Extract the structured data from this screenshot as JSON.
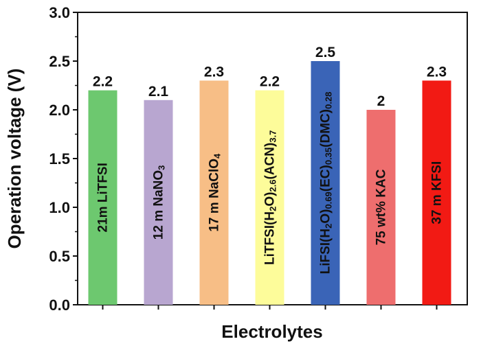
{
  "chart_data": {
    "type": "bar",
    "xlabel": "Electrolytes",
    "ylabel": "Operation voltage (V)",
    "ylim": [
      0,
      3.0
    ],
    "y_ticks": [
      "0.0",
      "0.5",
      "1.0",
      "1.5",
      "2.0",
      "2.5",
      "3.0"
    ],
    "y_tick_values": [
      0,
      0.5,
      1.0,
      1.5,
      2.0,
      2.5,
      3.0
    ],
    "grid": false,
    "legend": "none",
    "bars": [
      {
        "label": [
          {
            "t": "21m LiTFSI"
          }
        ],
        "value": 2.2,
        "value_label": "2.2",
        "color": "#6dc86f"
      },
      {
        "label": [
          {
            "t": "12 m NaNO"
          },
          {
            "t": "3",
            "sub": true
          }
        ],
        "value": 2.1,
        "value_label": "2.1",
        "color": "#b8a6d0"
      },
      {
        "label": [
          {
            "t": "17 m NaClO"
          },
          {
            "t": "4",
            "sub": true
          }
        ],
        "value": 2.3,
        "value_label": "2.3",
        "color": "#f7be86"
      },
      {
        "label": [
          {
            "t": "LiTFSI(H"
          },
          {
            "t": "2",
            "sub": true
          },
          {
            "t": "O)"
          },
          {
            "t": "2.6",
            "sub": true
          },
          {
            "t": "(ACN)"
          },
          {
            "t": "3.7",
            "sub": true
          }
        ],
        "value": 2.2,
        "value_label": "2.2",
        "color": "#fdfc9a"
      },
      {
        "label": [
          {
            "t": "LiFSI(H"
          },
          {
            "t": "2",
            "sub": true
          },
          {
            "t": "O)"
          },
          {
            "t": "0.69",
            "sub": true
          },
          {
            "t": "(EC)"
          },
          {
            "t": "0.35",
            "sub": true
          },
          {
            "t": "(DMC)"
          },
          {
            "t": "0.28",
            "sub": true
          }
        ],
        "value": 2.5,
        "value_label": "2.5",
        "color": "#3a64b7"
      },
      {
        "label": [
          {
            "t": "75 wt% KAC"
          }
        ],
        "value": 2.0,
        "value_label": "2",
        "color": "#ee6e6e"
      },
      {
        "label": [
          {
            "t": "37 m KFSI"
          }
        ],
        "value": 2.3,
        "value_label": "2.3",
        "color": "#f21a14"
      }
    ]
  }
}
